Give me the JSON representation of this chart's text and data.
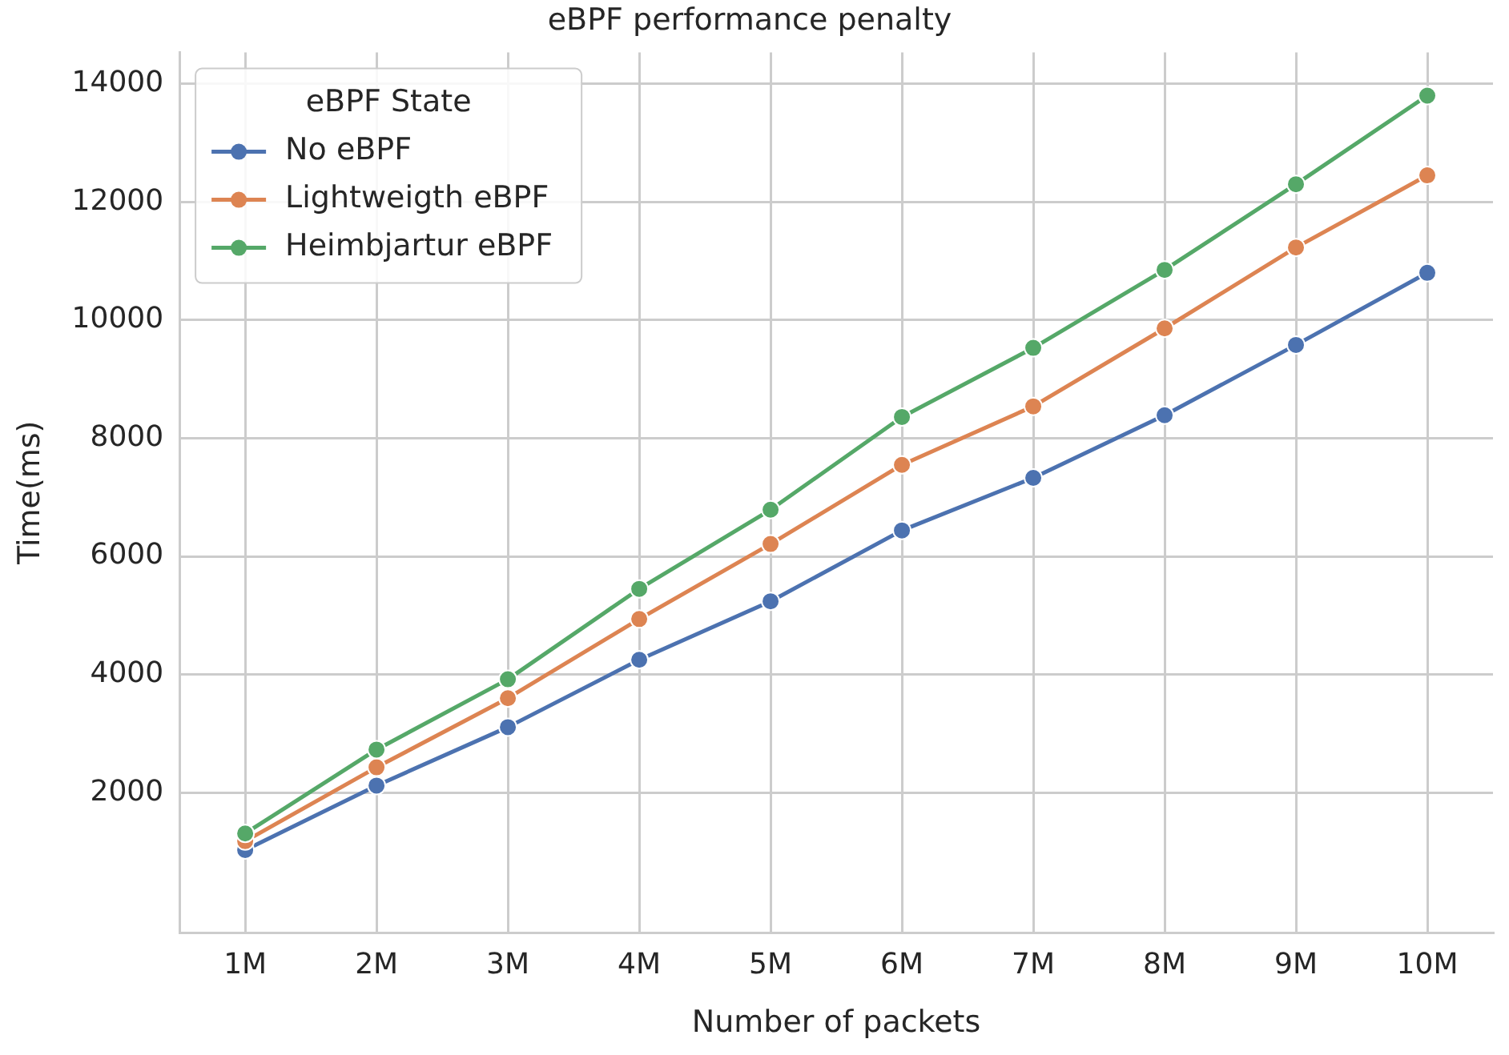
{
  "chart_data": {
    "type": "line",
    "title": "eBPF performance penalty",
    "xlabel": "Number of packets",
    "ylabel": "Time(ms)",
    "legend_title": "eBPF State",
    "categories": [
      "1M",
      "2M",
      "3M",
      "4M",
      "5M",
      "6M",
      "7M",
      "8M",
      "9M",
      "10M"
    ],
    "series": [
      {
        "name": "No eBPF",
        "color": "#4c72b0",
        "values": [
          1030,
          2120,
          3110,
          4250,
          5240,
          6440,
          7330,
          8390,
          9580,
          10800
        ]
      },
      {
        "name": "Lightweigth eBPF",
        "color": "#dd8452",
        "values": [
          1180,
          2430,
          3600,
          4940,
          6210,
          7550,
          8540,
          9860,
          11230,
          12450
        ]
      },
      {
        "name": "Heimbjartur eBPF",
        "color": "#55a868",
        "values": [
          1310,
          2730,
          3920,
          5450,
          6790,
          8360,
          9530,
          10850,
          12300,
          13800
        ]
      }
    ],
    "ylim": [
      -370,
      14530
    ],
    "yticks": [
      2000,
      4000,
      6000,
      8000,
      10000,
      12000,
      14000
    ],
    "grid": true,
    "legend": "top left",
    "marker": "circle",
    "line_style": "solid"
  }
}
